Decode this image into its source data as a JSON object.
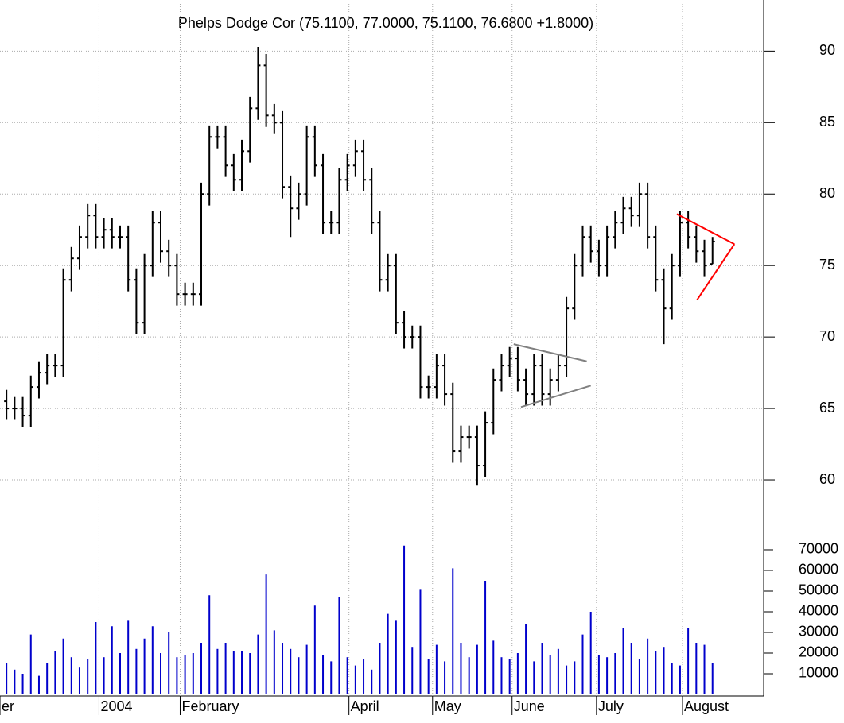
{
  "chart_data": {
    "type": "ohlc",
    "title": "Phelps Dodge Cor (75.1100, 77.0000, 75.1100, 76.6800 +1.8000)",
    "color": "#000000",
    "volume_color": "#0000cc",
    "grid": true,
    "xlim": [
      -0.8,
      93.3
    ],
    "xticks": [
      {
        "value": -0.8,
        "label": "er"
      },
      {
        "value": 11.4,
        "label": "2004"
      },
      {
        "value": 21.4,
        "label": "February"
      },
      {
        "value": 42.2,
        "label": "April"
      },
      {
        "value": 52.5,
        "label": "May"
      },
      {
        "value": 62.3,
        "label": "June"
      },
      {
        "value": 72.7,
        "label": "July"
      },
      {
        "value": 83.3,
        "label": "August"
      }
    ],
    "ylim": [
      57.5,
      93.3
    ],
    "yticks": [
      60,
      65,
      70,
      75,
      80,
      85,
      90
    ],
    "y2lim": [
      0,
      82300
    ],
    "y2ticks": [
      10000,
      20000,
      30000,
      40000,
      50000,
      60000,
      70000
    ],
    "open": [
      65.5,
      65,
      65,
      64.5,
      66.5,
      67.5,
      68,
      68,
      74,
      75.5,
      77,
      78.5,
      77,
      77.5,
      77,
      77,
      74,
      71,
      75,
      78,
      76,
      75,
      73,
      73,
      73,
      80,
      84,
      84,
      82,
      81,
      83,
      86,
      89,
      85.5,
      85,
      80.5,
      79,
      80,
      84,
      82,
      78,
      78,
      81,
      82,
      83,
      81,
      78,
      74,
      75,
      71,
      70,
      70,
      66.5,
      66.5,
      68,
      66,
      62,
      63,
      63,
      61,
      64,
      67,
      68,
      68.5,
      67,
      66,
      68,
      66,
      67,
      68,
      72,
      75,
      77,
      76,
      75,
      77,
      78,
      79,
      78.5,
      80,
      77,
      74,
      72,
      75,
      78,
      77,
      76,
      75.11
    ],
    "high": [
      66.3,
      65.8,
      65.8,
      67.3,
      68.3,
      68.8,
      68.8,
      74.8,
      76.3,
      77.8,
      79.3,
      79.3,
      78.3,
      78.3,
      77.8,
      77.8,
      74.8,
      75.8,
      78.8,
      78.8,
      76.8,
      75.8,
      73.8,
      73.8,
      80.8,
      84.8,
      84.8,
      84.8,
      82.8,
      83.8,
      86.8,
      90.3,
      89.8,
      86.3,
      85.8,
      81.3,
      80.8,
      84.8,
      84.8,
      82.8,
      78.8,
      81.8,
      82.8,
      83.8,
      83.8,
      81.8,
      78.8,
      75.8,
      75.8,
      71.8,
      70.8,
      70.8,
      67.3,
      68.8,
      68.8,
      66.8,
      63.8,
      63.8,
      63.8,
      64.8,
      67.8,
      68.8,
      69.3,
      69.3,
      67.8,
      68.8,
      68.8,
      67.8,
      68.8,
      72.8,
      75.8,
      77.8,
      77.8,
      76.8,
      77.8,
      78.8,
      79.8,
      79.8,
      80.8,
      80.8,
      77.8,
      74.8,
      75.8,
      78.8,
      78.8,
      77.8,
      76.8,
      77
    ],
    "low": [
      64.2,
      64.2,
      63.7,
      63.7,
      65.7,
      66.7,
      67.2,
      67.2,
      73.2,
      74.7,
      76.2,
      76.2,
      76.2,
      76.2,
      76.2,
      73.2,
      70.2,
      70.2,
      74.2,
      75.2,
      74.2,
      72.2,
      72.2,
      72.2,
      72.2,
      79.2,
      83.2,
      81.2,
      80.2,
      80.2,
      82.2,
      85.2,
      84.7,
      84.2,
      79.7,
      77,
      78.2,
      79.2,
      81.2,
      77.2,
      77.2,
      77.2,
      80.2,
      81.2,
      80.2,
      77.2,
      73.2,
      73.2,
      70.2,
      69.2,
      69.2,
      65.7,
      65.7,
      65.7,
      65.2,
      61.2,
      61.2,
      62.2,
      59.6,
      60.2,
      63.2,
      66.2,
      67.2,
      66.2,
      65.2,
      65.2,
      65.2,
      65.2,
      66.2,
      67.2,
      71.2,
      74.2,
      75.2,
      74.2,
      74.2,
      76.2,
      77.2,
      77.7,
      77.7,
      76.2,
      73.2,
      69.5,
      71.2,
      74.2,
      76.2,
      75.2,
      74.2,
      75.11
    ],
    "close": [
      65,
      65,
      64.5,
      66.5,
      67.5,
      68,
      68,
      74,
      75.5,
      77,
      78.5,
      77,
      77.5,
      77,
      77,
      74,
      71,
      75,
      78,
      76,
      75,
      73,
      73,
      73,
      80,
      84,
      84,
      82,
      81,
      83,
      86,
      89,
      85.5,
      85,
      80.5,
      79,
      80,
      84,
      82,
      78,
      78,
      81,
      82,
      83,
      81,
      78,
      74,
      75,
      71,
      70,
      70,
      66.5,
      66.5,
      68,
      66,
      62,
      63,
      63,
      61,
      64,
      67,
      68,
      68.5,
      67,
      66,
      68,
      66,
      67,
      68,
      72,
      75,
      77,
      76,
      75,
      77,
      78,
      79,
      78.5,
      80,
      77,
      74,
      72,
      75,
      78,
      77,
      76,
      75,
      76.68
    ],
    "volume": [
      15000,
      12000,
      10000,
      29000,
      9000,
      15000,
      21000,
      27000,
      18000,
      13000,
      17000,
      35000,
      18000,
      33000,
      20000,
      36000,
      22000,
      27000,
      33000,
      20000,
      30000,
      18000,
      19000,
      20000,
      25000,
      48000,
      22000,
      25000,
      21000,
      21000,
      20000,
      29000,
      58000,
      31000,
      25000,
      22000,
      18000,
      24000,
      43000,
      19000,
      16000,
      47000,
      18000,
      14000,
      17000,
      12000,
      25000,
      39000,
      36000,
      72000,
      23000,
      51000,
      17000,
      24000,
      16000,
      61000,
      25000,
      18000,
      24000,
      55000,
      26000,
      18000,
      17000,
      20000,
      34000,
      16000,
      25000,
      19000,
      22000,
      14000,
      16000,
      29000,
      40000,
      19000,
      18000,
      20000,
      32000,
      25000,
      17000,
      27000,
      21000,
      23000,
      15000,
      14000,
      32000,
      25000,
      24000,
      15000
    ],
    "trendlines": [
      {
        "color": "#808080",
        "x": [
          62.5,
          71.5
        ],
        "y": [
          69.5,
          68.3
        ]
      },
      {
        "color": "#808080",
        "x": [
          63.4,
          72
        ],
        "y": [
          65.1,
          66.6
        ]
      },
      {
        "color": "#ff0000",
        "x": [
          82.6,
          89.7
        ],
        "y": [
          78.6,
          76.5
        ]
      },
      {
        "color": "#ff0000",
        "x": [
          85.1,
          89.7
        ],
        "y": [
          72.6,
          76.5
        ]
      }
    ]
  }
}
